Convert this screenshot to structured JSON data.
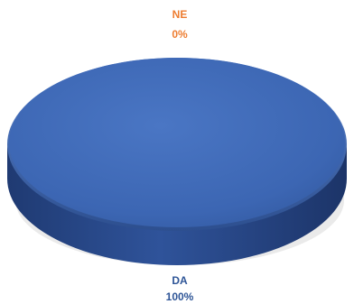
{
  "chart_data": {
    "type": "pie",
    "title": "",
    "categories": [
      "NE",
      "DA"
    ],
    "values": [
      0,
      100
    ],
    "data_labels": [
      "0%",
      "100%"
    ],
    "colors": {
      "NE": "#ED7D31",
      "DA": "#4472C4"
    },
    "label_colors": {
      "NE": "#ED7D31",
      "DA": "#2E5597"
    },
    "legend": "none",
    "style": "3d"
  }
}
